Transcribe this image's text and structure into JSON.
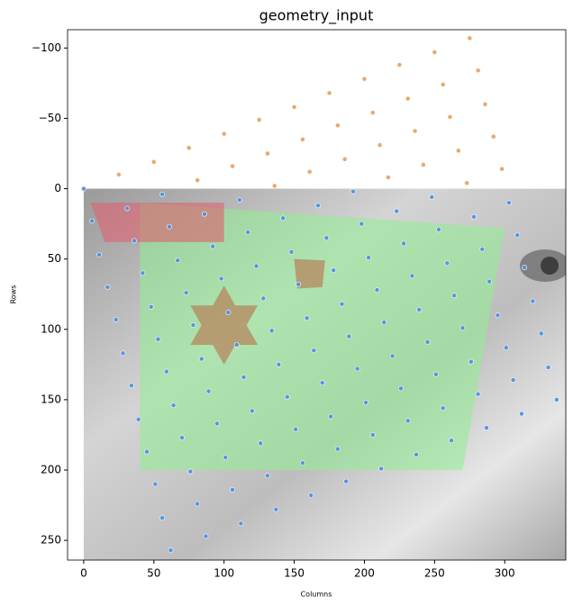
{
  "chart_data": {
    "type": "scatter",
    "title": "geometry_input",
    "x_label": "Columns",
    "y_label": "Rows",
    "xlim": [
      -11.5,
      343.5
    ],
    "ylim": [
      264,
      -113
    ],
    "xticks": [
      0,
      50,
      100,
      150,
      200,
      250,
      300
    ],
    "yticks": [
      {
        "value": -100,
        "label": "−100"
      },
      {
        "value": -50,
        "label": "−50"
      },
      0,
      50,
      100,
      150,
      200,
      250
    ],
    "shapes": [
      {
        "color": "#90ee90",
        "x": [
          40,
          300,
          270,
          40
        ],
        "y": [
          10,
          28,
          200,
          200
        ]
      },
      {
        "color": "#e06070",
        "x": [
          5,
          100,
          100,
          15
        ],
        "y": [
          10,
          10,
          38,
          38
        ]
      },
      {
        "color": "#b8704a",
        "x": [
          150,
          172,
          170,
          152
        ],
        "y": [
          50,
          51,
          70,
          71
        ]
      },
      {
        "color": "#b8704a",
        "x": [
          100,
          108,
          124,
          116,
          124,
          108,
          100,
          92,
          76,
          84,
          76,
          92
        ],
        "y": [
          69,
          83,
          83,
          97,
          111,
          111,
          125,
          111,
          111,
          97,
          83,
          83
        ]
      }
    ],
    "series": [
      {
        "color": "#e8a060",
        "x": [
          25,
          50,
          75,
          100,
          125,
          150,
          175,
          200,
          225,
          250,
          275,
          81,
          106,
          131,
          156,
          181,
          206,
          231,
          256,
          281,
          136,
          161,
          186,
          211,
          236,
          261,
          286,
          217,
          242,
          267,
          292,
          273,
          298
        ],
        "y": [
          -10,
          -19,
          -29,
          -39,
          -49,
          -58,
          -68,
          -78,
          -88,
          -97,
          -107,
          -6,
          -16,
          -25,
          -35,
          -45,
          -54,
          -64,
          -74,
          -84,
          -2,
          -12,
          -21,
          -31,
          -41,
          -51,
          -60,
          -8,
          -17,
          -27,
          -37,
          -4,
          -14
        ]
      },
      {
        "color": "#4a90e2",
        "x": [
          0,
          6,
          31,
          56,
          11,
          36,
          61,
          86,
          111,
          17,
          42,
          67,
          92,
          117,
          142,
          167,
          192,
          23,
          48,
          73,
          98,
          123,
          148,
          173,
          198,
          223,
          248,
          28,
          53,
          78,
          103,
          128,
          153,
          178,
          203,
          228,
          253,
          278,
          303,
          34,
          59,
          84,
          109,
          134,
          159,
          184,
          209,
          234,
          259,
          284,
          309,
          39,
          64,
          89,
          114,
          139,
          164,
          189,
          214,
          239,
          264,
          289,
          314,
          45,
          70,
          95,
          120,
          145,
          170,
          195,
          220,
          245,
          270,
          295,
          320,
          51,
          76,
          101,
          126,
          151,
          176,
          201,
          226,
          251,
          276,
          301,
          326,
          56,
          81,
          106,
          131,
          156,
          181,
          206,
          231,
          256,
          281,
          306,
          331,
          62,
          87,
          112,
          137,
          162,
          187,
          212,
          237,
          262,
          287,
          312,
          337
        ],
        "y": [
          0,
          23,
          14,
          4,
          47,
          37,
          27,
          18,
          8,
          70,
          60,
          51,
          41,
          31,
          21,
          12,
          2,
          93,
          84,
          74,
          64,
          55,
          45,
          35,
          25,
          16,
          6,
          117,
          107,
          97,
          88,
          78,
          68,
          58,
          49,
          39,
          29,
          20,
          10,
          140,
          130,
          121,
          111,
          101,
          92,
          82,
          72,
          62,
          53,
          43,
          33,
          164,
          154,
          144,
          134,
          125,
          115,
          105,
          95,
          86,
          76,
          66,
          56,
          187,
          177,
          167,
          158,
          148,
          138,
          128,
          119,
          109,
          99,
          90,
          80,
          210,
          201,
          191,
          181,
          171,
          162,
          152,
          142,
          132,
          123,
          113,
          103,
          234,
          224,
          214,
          204,
          195,
          185,
          175,
          165,
          156,
          146,
          136,
          127,
          257,
          247,
          238,
          228,
          218,
          208,
          199,
          189,
          179,
          170,
          160,
          150
        ]
      }
    ]
  }
}
